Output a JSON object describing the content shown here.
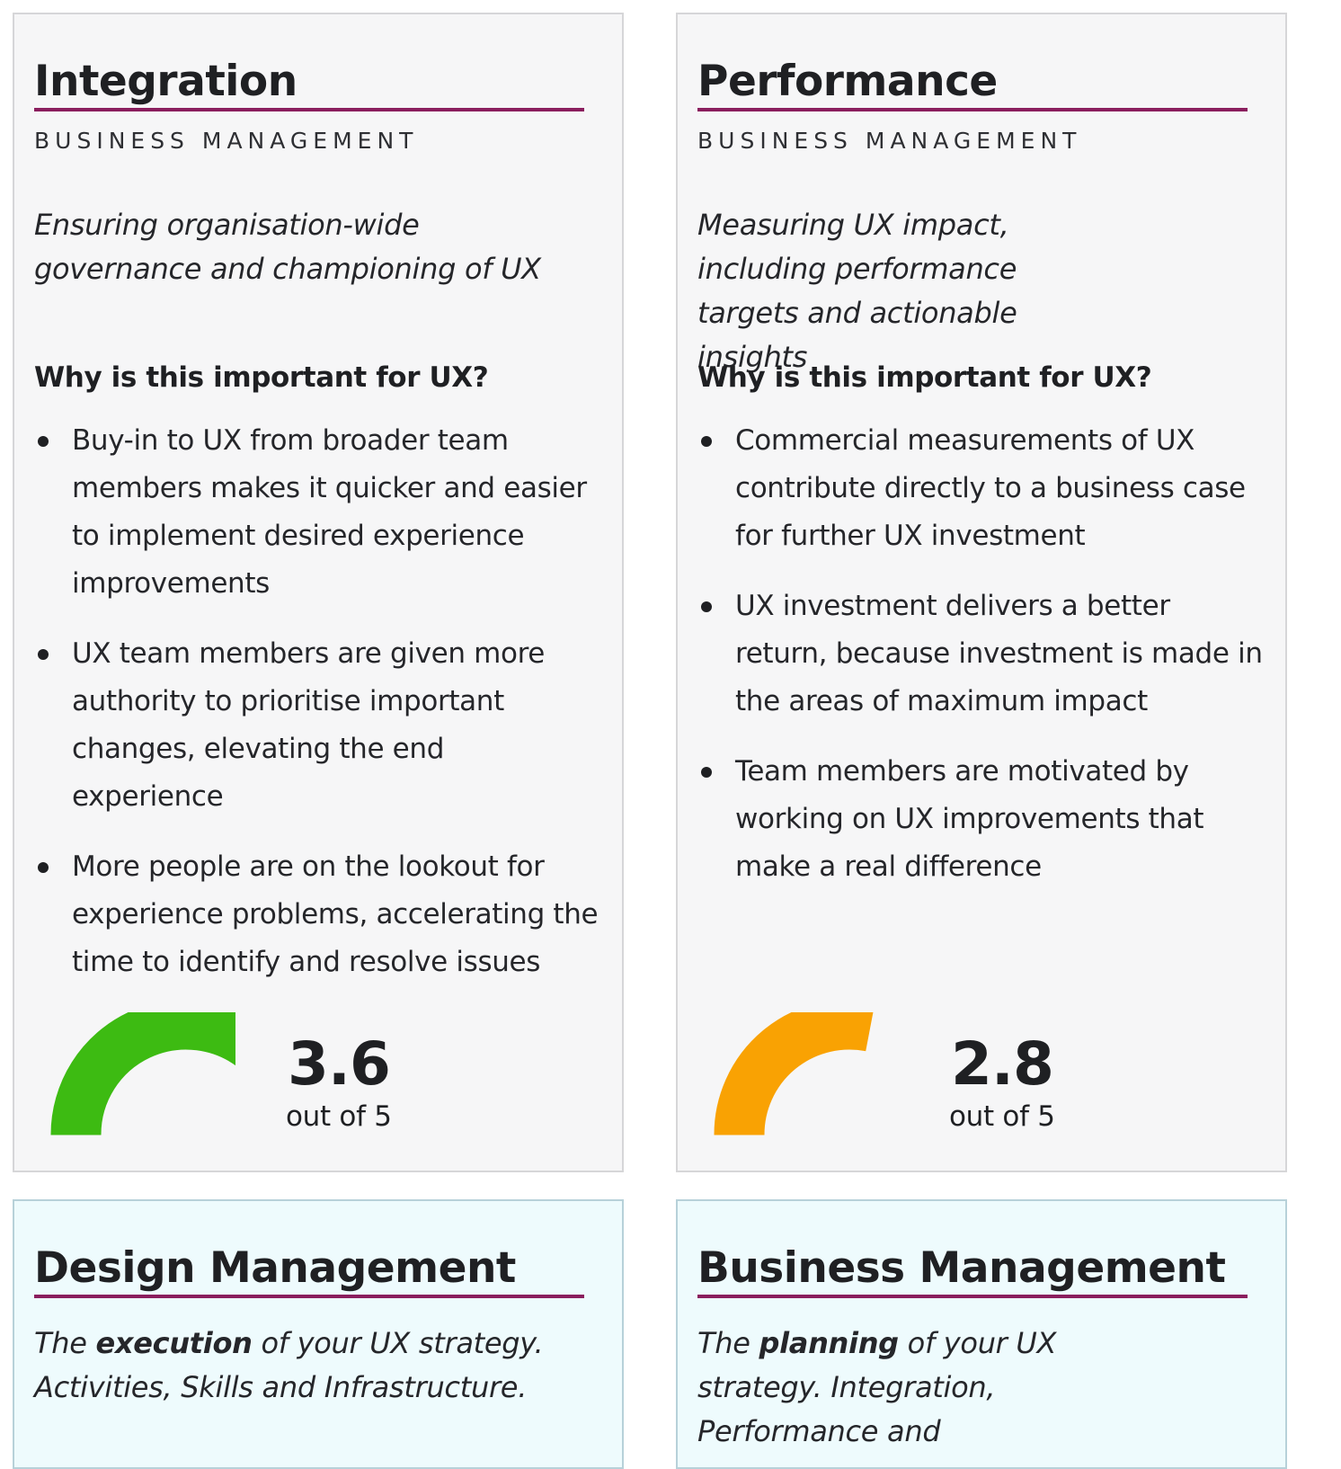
{
  "cards": [
    {
      "title": "Integration",
      "eyebrow": "BUSINESS MANAGEMENT",
      "lede": "Ensuring organisation-wide governance and championing of UX",
      "why_heading": "Why is this important for UX?",
      "bullets": [
        "Buy-in to UX from broader team members makes it quicker and easier to implement desired experience improvements",
        "UX team members are given more authority to prioritise important changes, elevating the end experience",
        "More people are on the lookout for experience problems, accelerating the time to identify and resolve issues"
      ],
      "score": {
        "value": "3.6",
        "caption": "out of 5",
        "fraction": 0.72,
        "color": "#3dbb12"
      }
    },
    {
      "title": "Performance",
      "eyebrow": "BUSINESS MANAGEMENT",
      "lede": "Measuring UX impact, including performance targets and actionable insights",
      "why_heading": "Why is this important for UX?",
      "bullets": [
        "Commercial measurements of UX contribute directly to a business case for further UX investment",
        "UX investment delivers a better return, because investment is made in the areas of maximum impact",
        "Team members are motivated by working on UX improvements that make a real difference"
      ],
      "score": {
        "value": "2.8",
        "caption": "out of 5",
        "fraction": 0.56,
        "color": "#f9a203"
      }
    }
  ],
  "nav_cards": [
    {
      "title": "Design Management",
      "lede_prefix": "The ",
      "lede_strong": "execution",
      "lede_suffix": " of your UX strategy. Activities, Skills and Infrastructure."
    },
    {
      "title": "Business Management",
      "lede_prefix": "The ",
      "lede_strong": "planning",
      "lede_suffix": " of your UX strategy. Integration, Performance and"
    }
  ],
  "colors": {
    "accent_rule": "#8a1e5e",
    "nav_background": "#eefbfd"
  }
}
